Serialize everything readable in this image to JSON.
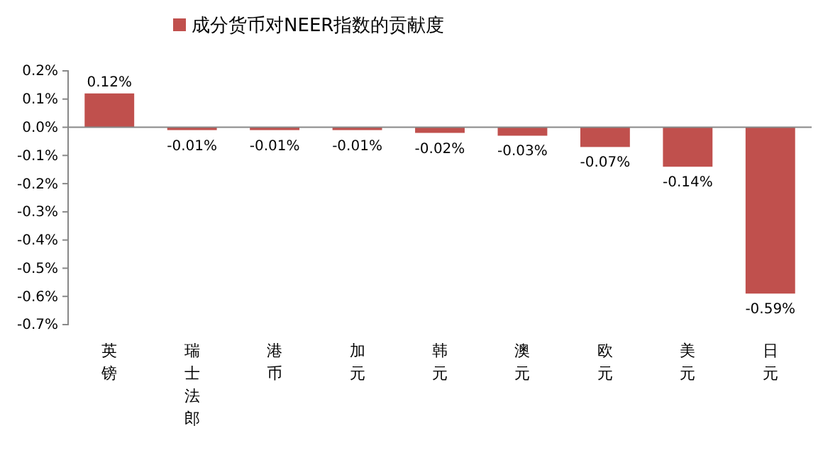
{
  "chart_data": {
    "type": "bar",
    "categories": [
      "英镑",
      "瑞士法郎",
      "港币",
      "加元",
      "韩元",
      "澳元",
      "欧元",
      "美元",
      "日元"
    ],
    "series": [
      {
        "name": "成分货币对NEER指数的贡献度",
        "color": "#c0504d",
        "values": [
          0.12,
          -0.01,
          -0.01,
          -0.01,
          -0.02,
          -0.03,
          -0.07,
          -0.14,
          -0.59
        ],
        "value_labels": [
          "0.12%",
          "-0.01%",
          "-0.01%",
          "-0.01%",
          "-0.02%",
          "-0.03%",
          "-0.07%",
          "-0.14%",
          "-0.59%"
        ]
      }
    ],
    "ylim": [
      -0.7,
      0.2
    ],
    "yticks": [
      {
        "value": 0.2,
        "label": "0.2%"
      },
      {
        "value": 0.1,
        "label": "0.1%"
      },
      {
        "value": 0,
        "label": "0.0%"
      },
      {
        "value": -0.1,
        "label": "-0.1%"
      },
      {
        "value": -0.2,
        "label": "-0.2%"
      },
      {
        "value": -0.3,
        "label": "-0.3%"
      },
      {
        "value": -0.4,
        "label": "-0.4%"
      },
      {
        "value": -0.5,
        "label": "-0.5%"
      },
      {
        "value": -0.6,
        "label": "-0.6%"
      },
      {
        "value": -0.7,
        "label": "-0.7%"
      }
    ],
    "legend": "top"
  }
}
